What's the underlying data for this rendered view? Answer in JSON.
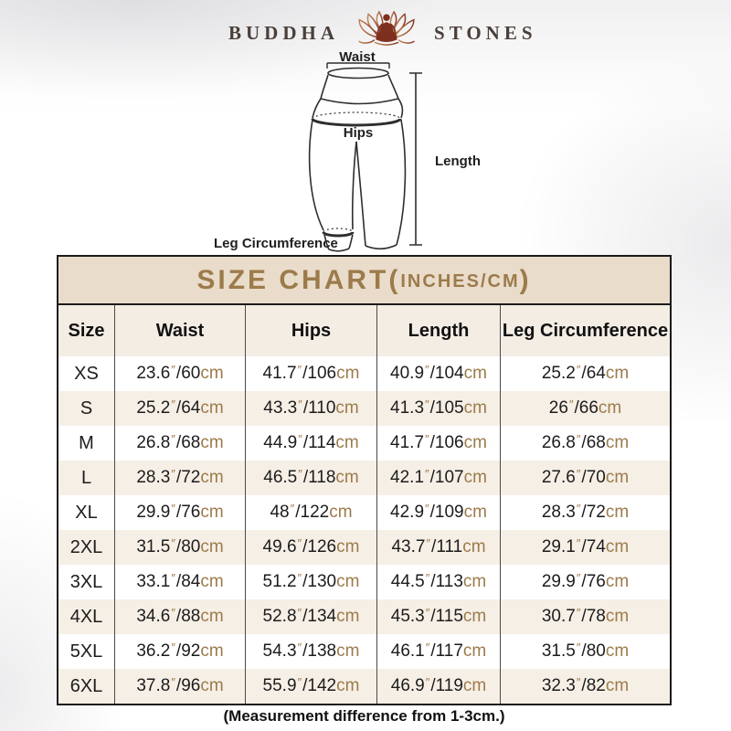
{
  "brand": {
    "left": "BUDDHA",
    "right": "STONES",
    "icon": "lotus-meditation-icon"
  },
  "diagram": {
    "waist_label": "Waist",
    "hips_label": "Hips",
    "length_label": "Length",
    "leg_label": "Leg Circumference"
  },
  "size_chart": {
    "title_left": "SIZE CHART(",
    "title_inner": "INCHES/CM",
    "title_right": ")",
    "units": {
      "inch_mark": "″",
      "slash": "/",
      "cm": "cm"
    }
  },
  "chart_data": {
    "type": "table",
    "title": "SIZE CHART(INCHES/CM)",
    "columns": [
      "Size",
      "Waist",
      "Hips",
      "Length",
      "Leg Circumference"
    ],
    "rows": [
      {
        "size": "XS",
        "waist": {
          "in": "23.6",
          "cm": "60"
        },
        "hips": {
          "in": "41.7",
          "cm": "106"
        },
        "length": {
          "in": "40.9",
          "cm": "104"
        },
        "leg": {
          "in": "25.2",
          "cm": "64"
        }
      },
      {
        "size": "S",
        "waist": {
          "in": "25.2",
          "cm": "64"
        },
        "hips": {
          "in": "43.3",
          "cm": "110"
        },
        "length": {
          "in": "41.3",
          "cm": "105"
        },
        "leg": {
          "in": "26",
          "cm": "66"
        }
      },
      {
        "size": "M",
        "waist": {
          "in": "26.8",
          "cm": "68"
        },
        "hips": {
          "in": "44.9",
          "cm": "114"
        },
        "length": {
          "in": "41.7",
          "cm": "106"
        },
        "leg": {
          "in": "26.8",
          "cm": "68"
        }
      },
      {
        "size": "L",
        "waist": {
          "in": "28.3",
          "cm": "72"
        },
        "hips": {
          "in": "46.5",
          "cm": "118"
        },
        "length": {
          "in": "42.1",
          "cm": "107"
        },
        "leg": {
          "in": "27.6",
          "cm": "70"
        }
      },
      {
        "size": "XL",
        "waist": {
          "in": "29.9",
          "cm": "76"
        },
        "hips": {
          "in": "48",
          "cm": "122"
        },
        "length": {
          "in": "42.9",
          "cm": "109"
        },
        "leg": {
          "in": "28.3",
          "cm": "72"
        }
      },
      {
        "size": "2XL",
        "waist": {
          "in": "31.5",
          "cm": "80"
        },
        "hips": {
          "in": "49.6",
          "cm": "126"
        },
        "length": {
          "in": "43.7",
          "cm": "111"
        },
        "leg": {
          "in": "29.1",
          "cm": "74"
        }
      },
      {
        "size": "3XL",
        "waist": {
          "in": "33.1",
          "cm": "84"
        },
        "hips": {
          "in": "51.2",
          "cm": "130"
        },
        "length": {
          "in": "44.5",
          "cm": "113"
        },
        "leg": {
          "in": "29.9",
          "cm": "76"
        }
      },
      {
        "size": "4XL",
        "waist": {
          "in": "34.6",
          "cm": "88"
        },
        "hips": {
          "in": "52.8",
          "cm": "134"
        },
        "length": {
          "in": "45.3",
          "cm": "115"
        },
        "leg": {
          "in": "30.7",
          "cm": "78"
        }
      },
      {
        "size": "5XL",
        "waist": {
          "in": "36.2",
          "cm": "92"
        },
        "hips": {
          "in": "54.3",
          "cm": "138"
        },
        "length": {
          "in": "46.1",
          "cm": "117"
        },
        "leg": {
          "in": "31.5",
          "cm": "80"
        }
      },
      {
        "size": "6XL",
        "waist": {
          "in": "37.8",
          "cm": "96"
        },
        "hips": {
          "in": "55.9",
          "cm": "142"
        },
        "length": {
          "in": "46.9",
          "cm": "119"
        },
        "leg": {
          "in": "32.3",
          "cm": "82"
        }
      }
    ]
  },
  "footnote": "(Measurement difference from 1-3cm.)",
  "colors": {
    "title_tan": "#9C7B4B",
    "title_band_beige": "#EADCCB",
    "header_row_beige": "#F4EDE4",
    "alt_row_beige": "#F6EFE6",
    "table_border": "#1A1A1A",
    "text_dark": "#1C1C1C",
    "lotus_dark_red": "#7E2F1D",
    "lotus_light_orange": "#C08557"
  }
}
